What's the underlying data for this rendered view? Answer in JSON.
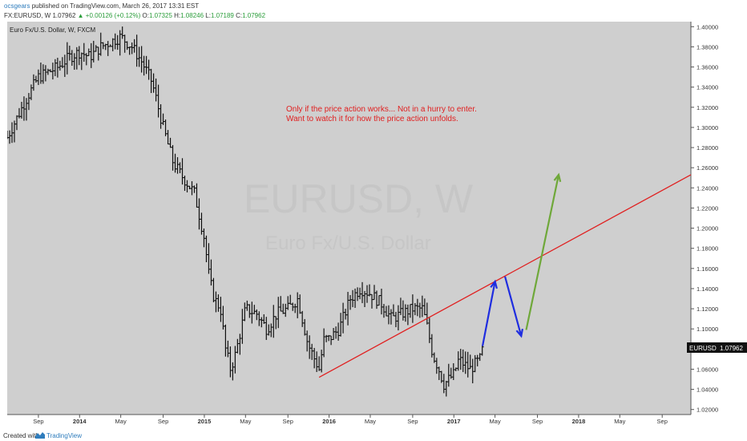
{
  "header": {
    "author": "ocsgears",
    "published": "published on TradingView.com, March 26, 2017 13:31 EST",
    "symbol_line": "FX:EURUSD, W",
    "last_price": "1.07962",
    "change": "+0.00126 (+0.12%)",
    "ohlc_labels": [
      "O:",
      "H:",
      "L:",
      "C:"
    ],
    "ohlc_values": [
      "1.07325",
      "1.08246",
      "1.07189",
      "1.07962"
    ]
  },
  "chart": {
    "title": "Euro Fx/U.S. Dollar, W, FXCM",
    "watermark_symbol": "EURUSD, W",
    "watermark_name": "Euro Fx/U.S. Dollar",
    "annotation_line1": "Only if the price action works... Not in a hurry to enter.",
    "annotation_line2": "Want to watch it for how the price action unfolds.",
    "price_tag_symbol": "EURUSD",
    "price_tag_value": "1.07962"
  },
  "chart_data": {
    "type": "ohlc",
    "symbol": "EURUSD",
    "timeframe": "W",
    "y_ticks": [
      "1.40000",
      "1.38000",
      "1.36000",
      "1.34000",
      "1.32000",
      "1.30000",
      "1.28000",
      "1.26000",
      "1.24000",
      "1.22000",
      "1.20000",
      "1.18000",
      "1.16000",
      "1.14000",
      "1.12000",
      "1.10000",
      "1.08000",
      "1.06000",
      "1.04000",
      "1.02000"
    ],
    "ylim": [
      1.015,
      1.405
    ],
    "x_ticks": [
      {
        "label": "Sep",
        "t": 2013.67
      },
      {
        "label": "2014",
        "t": 2014.0
      },
      {
        "label": "May",
        "t": 2014.33
      },
      {
        "label": "Sep",
        "t": 2014.67
      },
      {
        "label": "2015",
        "t": 2015.0
      },
      {
        "label": "May",
        "t": 2015.33
      },
      {
        "label": "Sep",
        "t": 2015.67
      },
      {
        "label": "2016",
        "t": 2016.0
      },
      {
        "label": "May",
        "t": 2016.33
      },
      {
        "label": "Sep",
        "t": 2016.67
      },
      {
        "label": "2017",
        "t": 2017.0
      },
      {
        "label": "May",
        "t": 2017.33
      },
      {
        "label": "Sep",
        "t": 2017.67
      },
      {
        "label": "2018",
        "t": 2018.0
      },
      {
        "label": "May",
        "t": 2018.33
      },
      {
        "label": "Sep",
        "t": 2018.67
      }
    ],
    "xlim": [
      2013.42,
      2018.9
    ],
    "close_path": [
      [
        2013.42,
        1.29
      ],
      [
        2013.5,
        1.31
      ],
      [
        2013.58,
        1.33
      ],
      [
        2013.67,
        1.35
      ],
      [
        2013.75,
        1.355
      ],
      [
        2013.83,
        1.36
      ],
      [
        2013.92,
        1.37
      ],
      [
        2014.0,
        1.375
      ],
      [
        2014.08,
        1.37
      ],
      [
        2014.17,
        1.38
      ],
      [
        2014.25,
        1.385
      ],
      [
        2014.33,
        1.39
      ],
      [
        2014.42,
        1.38
      ],
      [
        2014.5,
        1.365
      ],
      [
        2014.58,
        1.345
      ],
      [
        2014.67,
        1.3
      ],
      [
        2014.75,
        1.265
      ],
      [
        2014.83,
        1.25
      ],
      [
        2014.92,
        1.235
      ],
      [
        2015.0,
        1.19
      ],
      [
        2015.04,
        1.15
      ],
      [
        2015.08,
        1.13
      ],
      [
        2015.13,
        1.12
      ],
      [
        2015.17,
        1.08
      ],
      [
        2015.21,
        1.06
      ],
      [
        2015.25,
        1.075
      ],
      [
        2015.33,
        1.12
      ],
      [
        2015.42,
        1.115
      ],
      [
        2015.5,
        1.1
      ],
      [
        2015.58,
        1.115
      ],
      [
        2015.67,
        1.12
      ],
      [
        2015.75,
        1.13
      ],
      [
        2015.83,
        1.085
      ],
      [
        2015.92,
        1.06
      ],
      [
        2015.96,
        1.09
      ],
      [
        2016.0,
        1.09
      ],
      [
        2016.08,
        1.1
      ],
      [
        2016.17,
        1.13
      ],
      [
        2016.25,
        1.14
      ],
      [
        2016.33,
        1.135
      ],
      [
        2016.42,
        1.125
      ],
      [
        2016.5,
        1.11
      ],
      [
        2016.58,
        1.115
      ],
      [
        2016.67,
        1.12
      ],
      [
        2016.75,
        1.12
      ],
      [
        2016.79,
        1.1
      ],
      [
        2016.83,
        1.075
      ],
      [
        2016.88,
        1.06
      ],
      [
        2016.92,
        1.045
      ],
      [
        2016.96,
        1.05
      ],
      [
        2017.0,
        1.055
      ],
      [
        2017.04,
        1.07
      ],
      [
        2017.08,
        1.065
      ],
      [
        2017.13,
        1.06
      ],
      [
        2017.17,
        1.065
      ],
      [
        2017.21,
        1.07
      ],
      [
        2017.23,
        1.07962
      ]
    ],
    "trendline": {
      "from": [
        2015.92,
        1.052
      ],
      "to": [
        2018.9,
        1.253
      ],
      "color": "#e02020"
    },
    "projection_blue": [
      [
        2017.23,
        1.083
      ],
      [
        2017.33,
        1.147
      ],
      [
        2017.41,
        1.152
      ],
      [
        2017.54,
        1.093
      ]
    ],
    "projection_green": [
      [
        2017.58,
        1.099
      ],
      [
        2017.84,
        1.253
      ]
    ],
    "colors": {
      "bars": "#111111",
      "trendline": "#e02020",
      "projection_blue": "#1f2de0",
      "projection_green": "#6fa83a",
      "background": "#cfcfcf",
      "annotation": "#e02020"
    }
  },
  "footer": {
    "created_with": "Created with",
    "brand": "TradingView"
  }
}
